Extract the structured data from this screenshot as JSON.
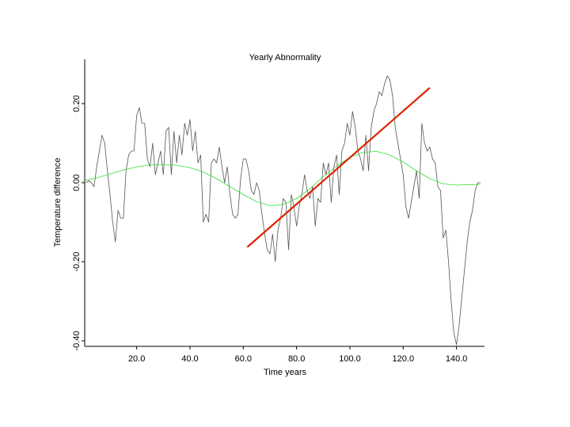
{
  "chart_data": {
    "type": "line",
    "title": "Yearly Abnormality",
    "x_label": "Time years",
    "y_label": "Temperature difference",
    "xlim": [
      0.5,
      150.5
    ],
    "ylim": [
      -0.414,
      0.312
    ],
    "xticks": [
      {
        "value": 20,
        "label": "20.0"
      },
      {
        "value": 40,
        "label": "40.0"
      },
      {
        "value": 60,
        "label": "60.0"
      },
      {
        "value": 80,
        "label": "80.0"
      },
      {
        "value": 100,
        "label": "100.0"
      },
      {
        "value": 120,
        "label": "120.0"
      },
      {
        "value": 140,
        "label": "140.0"
      }
    ],
    "yticks": [
      {
        "value": 0.2,
        "label": "0.20"
      },
      {
        "value": 0,
        "label": "0.00"
      },
      {
        "value": -0.2,
        "label": "-0.20"
      },
      {
        "value": -0.4,
        "label": "-0.40"
      }
    ],
    "grid": false,
    "series": [
      {
        "color": "#555555",
        "width": 0.8,
        "x": [
          1,
          2,
          3,
          4,
          5,
          6,
          7,
          8,
          9,
          10,
          11,
          12,
          13,
          14,
          15,
          16,
          17,
          18,
          19,
          20,
          21,
          22,
          23,
          24,
          25,
          26,
          27,
          28,
          29,
          30,
          31,
          32,
          33,
          34,
          35,
          36,
          37,
          38,
          39,
          40,
          41,
          42,
          43,
          44,
          45,
          46,
          47,
          48,
          49,
          50,
          51,
          52,
          53,
          54,
          55,
          56,
          57,
          58,
          59,
          60,
          61,
          62,
          63,
          64,
          65,
          66,
          67,
          68,
          69,
          70,
          71,
          72,
          73,
          74,
          75,
          76,
          77,
          78,
          79,
          80,
          81,
          82,
          83,
          84,
          85,
          86,
          87,
          88,
          89,
          90,
          91,
          92,
          93,
          94,
          95,
          96,
          97,
          98,
          99,
          100,
          101,
          102,
          103,
          104,
          105,
          106,
          107,
          108,
          109,
          110,
          111,
          112,
          113,
          114,
          115,
          116,
          117,
          118,
          119,
          120,
          121,
          122,
          123,
          124,
          125,
          126,
          127,
          128,
          129,
          130,
          131,
          132,
          133,
          134,
          135,
          136,
          137,
          138,
          139,
          140,
          141,
          142,
          143,
          144,
          145,
          146,
          147,
          148,
          149
        ],
        "values": [
          0.0,
          0.005,
          0.0,
          -0.01,
          0.04,
          0.08,
          0.12,
          0.1,
          0.03,
          -0.03,
          -0.1,
          -0.15,
          -0.07,
          -0.09,
          -0.09,
          0.03,
          0.07,
          0.08,
          0.08,
          0.17,
          0.19,
          0.15,
          0.15,
          0.06,
          0.04,
          0.1,
          0.02,
          0.05,
          0.08,
          0.02,
          0.13,
          0.14,
          0.02,
          0.13,
          0.05,
          0.12,
          0.07,
          0.15,
          0.12,
          0.16,
          0.08,
          0.13,
          0.05,
          0.07,
          -0.1,
          -0.08,
          -0.1,
          0.05,
          0.06,
          0.05,
          0.09,
          0.04,
          0.0,
          0.04,
          -0.03,
          -0.08,
          -0.09,
          -0.08,
          0.01,
          0.06,
          0.06,
          0.03,
          -0.02,
          -0.03,
          0.0,
          -0.02,
          -0.08,
          -0.13,
          -0.17,
          -0.18,
          -0.13,
          -0.2,
          -0.12,
          -0.09,
          -0.04,
          -0.05,
          -0.17,
          -0.03,
          -0.06,
          -0.11,
          -0.06,
          -0.03,
          0.02,
          -0.02,
          -0.04,
          -0.01,
          -0.11,
          -0.04,
          -0.05,
          0.05,
          0.02,
          0.05,
          -0.05,
          0.04,
          0.07,
          -0.03,
          0.08,
          0.1,
          0.15,
          0.12,
          0.18,
          0.14,
          0.08,
          0.06,
          0.03,
          0.12,
          0.03,
          0.14,
          0.18,
          0.2,
          0.23,
          0.22,
          0.25,
          0.27,
          0.26,
          0.22,
          0.14,
          0.1,
          0.06,
          0.02,
          -0.06,
          -0.09,
          -0.05,
          -0.01,
          0.03,
          -0.04,
          0.15,
          0.1,
          0.08,
          0.09,
          0.06,
          0.05,
          -0.01,
          -0.02,
          -0.14,
          -0.12,
          -0.2,
          -0.3,
          -0.38,
          -0.41,
          -0.36,
          -0.29,
          -0.22,
          -0.15,
          -0.1,
          -0.07,
          -0.02,
          0.0,
          0.0
        ]
      },
      {
        "color": "#33dd33",
        "width": 0.8,
        "x": [
          0,
          5,
          10,
          15,
          20,
          25,
          30,
          35,
          40,
          45,
          50,
          55,
          60,
          65,
          70,
          75,
          80,
          85,
          90,
          95,
          100,
          105,
          110,
          115,
          120,
          125,
          130,
          135,
          140,
          145,
          149
        ],
        "values": [
          0.005,
          0.012,
          0.022,
          0.032,
          0.04,
          0.045,
          0.046,
          0.044,
          0.038,
          0.027,
          0.01,
          -0.01,
          -0.03,
          -0.048,
          -0.058,
          -0.055,
          -0.04,
          -0.015,
          0.015,
          0.042,
          0.064,
          0.077,
          0.079,
          0.07,
          0.052,
          0.03,
          0.01,
          -0.003,
          -0.006,
          -0.005,
          -0.004
        ]
      },
      {
        "color": "#dd2200",
        "width": 2.2,
        "x": [
          61.5,
          130
        ],
        "values": [
          -0.163,
          0.24
        ]
      }
    ]
  }
}
